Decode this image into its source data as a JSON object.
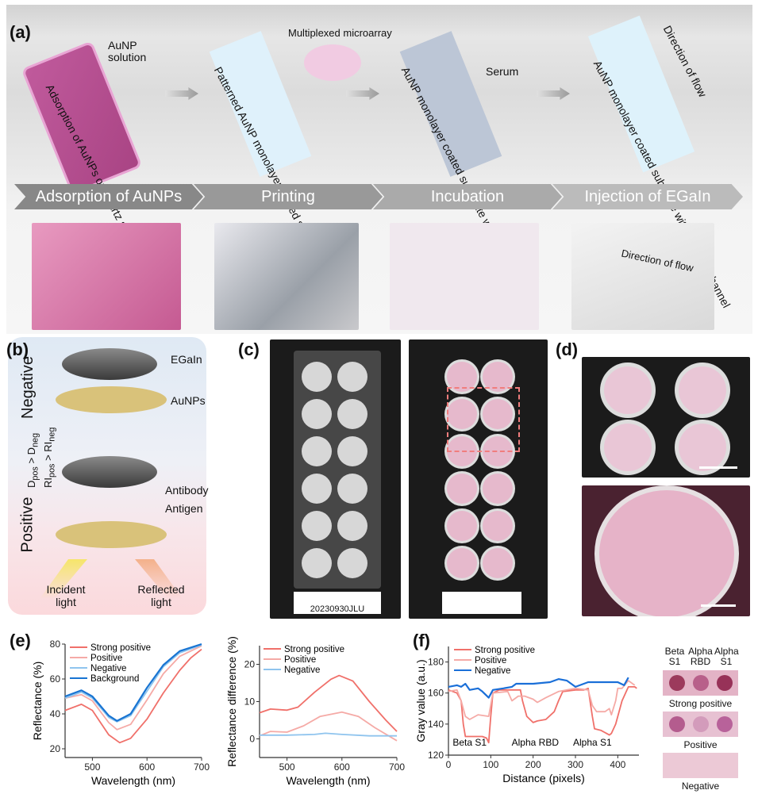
{
  "panel_labels": {
    "a": "(a)",
    "b": "(b)",
    "c": "(c)",
    "d": "(d)",
    "e": "(e)",
    "f": "(f)"
  },
  "panel_a": {
    "aunp_solution": "AuNP solution",
    "step1_caption": "Adsorption of AuNPs on quartz substrate",
    "multiplexed_microarray": "Multiplexed microarray",
    "step2_caption": "Patterned AuNP monolayer coated substrate",
    "step3_caption": "AuNP monolayer coated substrate with a PDMS frame",
    "serum": "Serum",
    "step4_caption": "AuNP monolayer coated substrate with a PDMS channel",
    "direction_of_flow": "Direction of flow",
    "stages": [
      "Adsorption of AuNPs",
      "Printing",
      "Incubation",
      "Injection of EGaIn"
    ],
    "photo_direction_of_flow": "Direction of flow"
  },
  "panel_b": {
    "negative": "Negative",
    "positive": "Positive",
    "egain": "EGaIn",
    "aunps": "AuNPs",
    "antibody": "Antibody",
    "antigen": "Antigen",
    "incident_light": "Incident light",
    "reflected_light": "Reflected light",
    "d_relation": "D",
    "d_pos": "pos",
    "d_neg": "neg",
    "ri": "RI"
  },
  "panel_c": {
    "barcode": "20230930JLU"
  },
  "colors": {
    "strong_positive": "#f0706a",
    "positive": "#f5aaa6",
    "negative": "#8fc4ee",
    "background": "#1874d2",
    "negative_f": "#1a6fd8"
  },
  "chart_data": [
    {
      "type": "line",
      "xlabel": "Wavelength (nm)",
      "ylabel": "Reflectance (%)",
      "xlim": [
        450,
        700
      ],
      "ylim": [
        15,
        80
      ],
      "xticks": [
        500,
        600,
        700
      ],
      "yticks": [
        20,
        40,
        60,
        80
      ],
      "legend": "top-left",
      "series": [
        {
          "name": "Strong positive",
          "x": [
            450,
            480,
            500,
            530,
            550,
            570,
            600,
            630,
            660,
            680,
            700
          ],
          "y": [
            42,
            45.5,
            42,
            28,
            23.5,
            26,
            37,
            52,
            65,
            72,
            77
          ]
        },
        {
          "name": "Positive",
          "x": [
            450,
            480,
            500,
            530,
            545,
            570,
            600,
            630,
            660,
            700
          ],
          "y": [
            49,
            51,
            47.5,
            35,
            31,
            34,
            48,
            63,
            73,
            79
          ]
        },
        {
          "name": "Negative",
          "x": [
            450,
            480,
            500,
            530,
            545,
            570,
            600,
            630,
            660,
            700
          ],
          "y": [
            49,
            52.5,
            49,
            38,
            35.5,
            39,
            53,
            67,
            75,
            79.5
          ]
        },
        {
          "name": "Background",
          "x": [
            450,
            480,
            500,
            530,
            545,
            570,
            600,
            630,
            660,
            700
          ],
          "y": [
            50,
            53.5,
            50,
            39,
            36,
            40,
            55,
            68,
            76,
            80
          ]
        }
      ]
    },
    {
      "type": "line",
      "xlabel": "Wavelength (nm)",
      "ylabel": "Reflectance difference (%)",
      "xlim": [
        450,
        700
      ],
      "ylim": [
        -5,
        25
      ],
      "xticks": [
        500,
        600,
        700
      ],
      "yticks": [
        0,
        10,
        20
      ],
      "legend": "top-left",
      "series": [
        {
          "name": "Strong positive",
          "x": [
            450,
            470,
            500,
            520,
            550,
            580,
            595,
            620,
            650,
            680,
            700
          ],
          "y": [
            7,
            8,
            7.7,
            8.5,
            12.5,
            16,
            17,
            15.5,
            10,
            5,
            2
          ]
        },
        {
          "name": "Positive",
          "x": [
            450,
            470,
            500,
            530,
            560,
            600,
            630,
            660,
            700
          ],
          "y": [
            0.8,
            2,
            1.8,
            3.5,
            6,
            7.2,
            6,
            3,
            -0.5
          ]
        },
        {
          "name": "Negative",
          "x": [
            450,
            500,
            550,
            570,
            600,
            650,
            700
          ],
          "y": [
            1,
            1,
            1.2,
            1.5,
            1.2,
            0.8,
            0.8
          ]
        }
      ]
    },
    {
      "type": "line",
      "xlabel": "Distance (pixels)",
      "ylabel": "Gray value (a.u.)",
      "xlim": [
        0,
        450
      ],
      "ylim": [
        120,
        190
      ],
      "xticks": [
        0,
        100,
        200,
        300,
        400
      ],
      "yticks": [
        120,
        140,
        160,
        180
      ],
      "legend": "top-left",
      "annotations": [
        "Beta S1",
        "Alpha RBD",
        "Alpha S1"
      ],
      "series": [
        {
          "name": "Strong positive",
          "x": [
            0,
            20,
            30,
            35,
            40,
            60,
            80,
            90,
            95,
            100,
            105,
            120,
            170,
            175,
            185,
            200,
            210,
            230,
            250,
            260,
            270,
            300,
            320,
            330,
            340,
            345,
            360,
            380,
            385,
            395,
            410,
            425,
            440,
            445
          ],
          "y": [
            162,
            160,
            155,
            140,
            132,
            132,
            132,
            131,
            128,
            145,
            160,
            162,
            162,
            155,
            145,
            141,
            142,
            143,
            148,
            155,
            161,
            162,
            162,
            163,
            145,
            137,
            136,
            133,
            134,
            140,
            155,
            164,
            164,
            163
          ]
        },
        {
          "name": "Positive",
          "x": [
            0,
            20,
            30,
            40,
            50,
            70,
            95,
            105,
            140,
            150,
            165,
            180,
            200,
            210,
            230,
            260,
            300,
            330,
            340,
            350,
            370,
            380,
            385,
            395,
            400,
            410,
            425,
            440
          ],
          "y": [
            161,
            162,
            155,
            145,
            143,
            146,
            145,
            160,
            161,
            155,
            158,
            158,
            156,
            154,
            157,
            161,
            163,
            162,
            152,
            148,
            148,
            150,
            146,
            155,
            163,
            163,
            168,
            165
          ]
        },
        {
          "name": "Negative",
          "x": [
            0,
            20,
            30,
            40,
            50,
            70,
            80,
            95,
            105,
            130,
            150,
            160,
            200,
            240,
            260,
            280,
            300,
            330,
            400,
            415,
            425
          ],
          "y": [
            164,
            165,
            164,
            166,
            162,
            163,
            161,
            157,
            162,
            163,
            164,
            166,
            166,
            167,
            169,
            168,
            164,
            167,
            167,
            165,
            170
          ]
        }
      ]
    }
  ],
  "panel_f_side": {
    "columns": [
      "Beta S1",
      "Alpha RBD",
      "Alpha S1"
    ],
    "rows": [
      "Strong positive",
      "Positive",
      "Negative"
    ]
  }
}
